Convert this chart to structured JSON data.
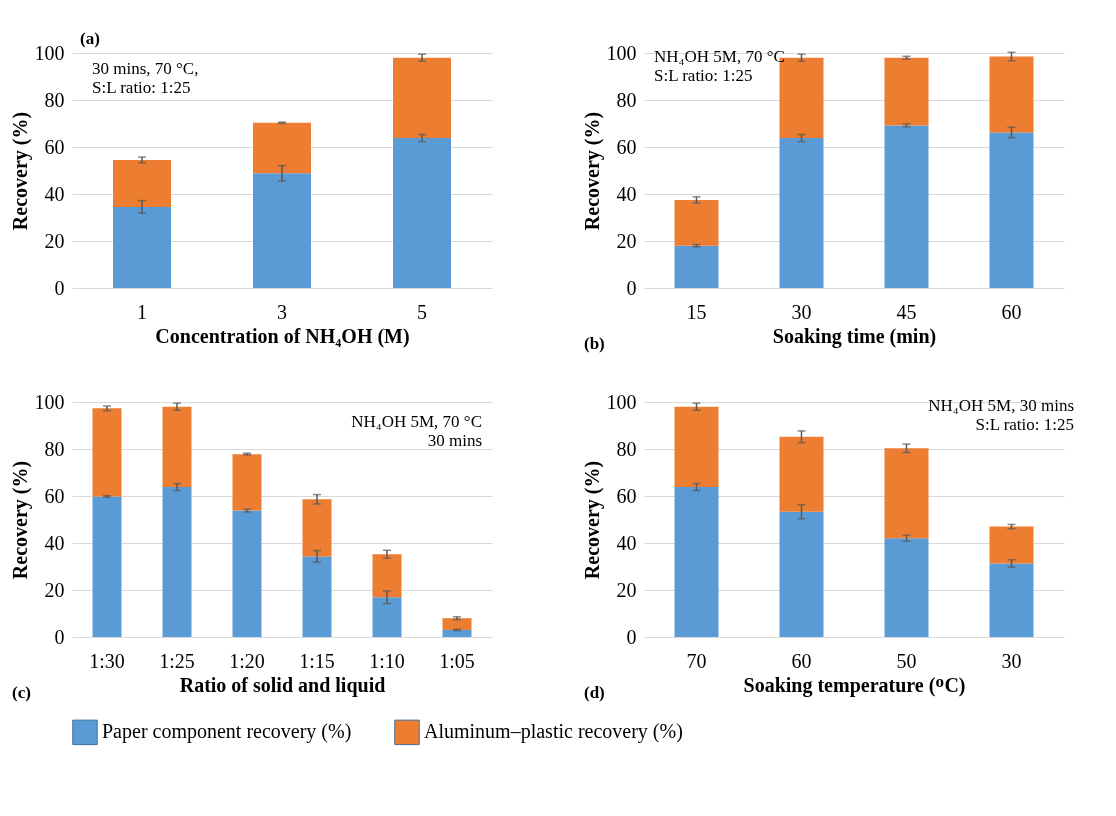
{
  "chart_data": [
    {
      "type": "bar",
      "stacked": true,
      "xlabel": "Concentration of NH₄OH (M)",
      "ylabel": "Recovery (%)",
      "categories": [
        "1",
        "3",
        "5"
      ],
      "ylim": [
        0,
        100
      ],
      "yticks": [
        0,
        20,
        40,
        60,
        80,
        100
      ],
      "grid": "y",
      "legend": "bottom",
      "series": [
        {
          "name": "Paper component recovery (%)",
          "color": "#5b9bd5",
          "values": [
            34.5,
            48.8,
            63.8
          ],
          "errors": [
            2.7,
            3.3,
            1.5
          ]
        },
        {
          "name": "Aluminum–plastic recovery (%)",
          "color": "#ed7d31",
          "values": [
            20.0,
            21.5,
            34.2
          ],
          "errors": [
            1.2,
            0.3,
            1.5
          ]
        }
      ],
      "annotations": [
        "(a)",
        "30 mins, 70 °C,\nS:L ratio: 1:25"
      ]
    },
    {
      "type": "bar",
      "stacked": true,
      "xlabel": "Soaking time (min)",
      "ylabel": "Recovery (%)",
      "categories": [
        "15",
        "30",
        "45",
        "60"
      ],
      "ylim": [
        0,
        100
      ],
      "yticks": [
        0,
        20,
        40,
        60,
        80,
        100
      ],
      "grid": "y",
      "legend": "bottom",
      "series": [
        {
          "name": "Paper component recovery (%)",
          "color": "#5b9bd5",
          "values": [
            18.0,
            63.8,
            69.2,
            66.2
          ],
          "errors": [
            0.5,
            1.5,
            0.6,
            2.2
          ]
        },
        {
          "name": "Aluminum–plastic recovery (%)",
          "color": "#ed7d31",
          "values": [
            19.5,
            34.2,
            28.8,
            32.3
          ],
          "errors": [
            1.3,
            1.5,
            0.6,
            1.8
          ]
        }
      ],
      "annotations": [
        "(b)",
        "NH₄OH 5M, 70 °C\nS:L ratio: 1:25"
      ]
    },
    {
      "type": "bar",
      "stacked": true,
      "xlabel": "Ratio of solid and liquid",
      "ylabel": "Recovery (%)",
      "categories": [
        "1:30",
        "1:25",
        "1:20",
        "1:15",
        "1:10",
        "1:05"
      ],
      "ylim": [
        0,
        100
      ],
      "yticks": [
        0,
        20,
        40,
        60,
        80,
        100
      ],
      "grid": "y",
      "legend": "bottom",
      "series": [
        {
          "name": "Paper component recovery (%)",
          "color": "#5b9bd5",
          "values": [
            59.8,
            63.8,
            53.8,
            34.3,
            16.9,
            3.0
          ],
          "errors": [
            0.3,
            1.5,
            0.6,
            2.5,
            2.7,
            0.3
          ]
        },
        {
          "name": "Aluminum–plastic recovery (%)",
          "color": "#ed7d31",
          "values": [
            37.5,
            34.2,
            24.0,
            24.3,
            18.3,
            5.0
          ],
          "errors": [
            1.0,
            1.5,
            0.4,
            2.0,
            1.7,
            0.6
          ]
        }
      ],
      "annotations": [
        "(c)",
        "NH₄OH 5M, 70 °C\n30 mins"
      ]
    },
    {
      "type": "bar",
      "stacked": true,
      "xlabel": "Soaking temperature (ᴼC)",
      "ylabel": "Recovery (%)",
      "categories": [
        "70",
        "60",
        "50",
        "30"
      ],
      "ylim": [
        0,
        100
      ],
      "yticks": [
        0,
        20,
        40,
        60,
        80,
        100
      ],
      "grid": "y",
      "legend": "bottom",
      "series": [
        {
          "name": "Paper component recovery (%)",
          "color": "#5b9bd5",
          "values": [
            63.8,
            53.3,
            42.0,
            31.3
          ],
          "errors": [
            1.5,
            3.0,
            1.3,
            1.6
          ]
        },
        {
          "name": "Aluminum–plastic recovery (%)",
          "color": "#ed7d31",
          "values": [
            34.2,
            31.9,
            38.3,
            15.7
          ],
          "errors": [
            1.5,
            2.5,
            1.8,
            0.9
          ]
        }
      ],
      "annotations": [
        "(d)",
        "NH₄OH 5M, 30 mins\nS:L ratio: 1:25"
      ]
    }
  ]
}
